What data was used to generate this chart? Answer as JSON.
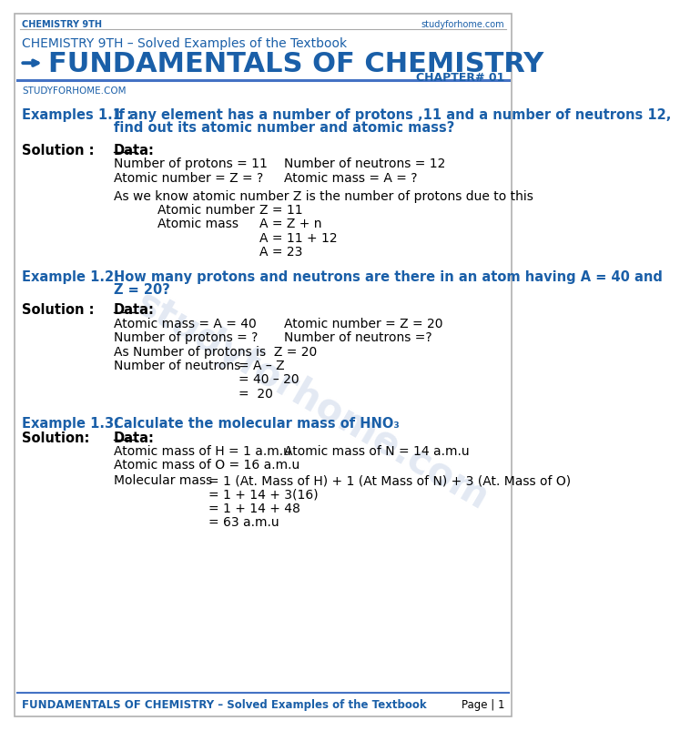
{
  "page_bg": "#ffffff",
  "border_color": "#cccccc",
  "blue_dark": "#1a5fa8",
  "blue_medium": "#2e75b6",
  "blue_light": "#4472c4",
  "text_black": "#000000",
  "text_gray": "#333333",
  "watermark_color": "#d0d8e8",
  "header_top_text_left": "CHEMISTRY 9TH",
  "header_top_text_right": "studyforhome.com",
  "subtitle_line": "CHEMISTRY 9TH – Solved Examples of the Textbook",
  "main_title": "FUNDAMENTALS OF CHEMISTRY",
  "chapter_label": "CHAPTER# 01",
  "studyforhome_label": "STUDYFORHOME.COM",
  "footer_left": "FUNDAMENTALS OF CHEMISTRY – Solved Examples of the Textbook",
  "footer_right": "Page | 1",
  "ex1_label": "Examples 1.1 :",
  "ex1_q1": "If any element has a number of protons ,11 and a number of neutrons 12,",
  "ex1_q2": "find out its atomic number and atomic mass?",
  "ex1_sol_label": "Solution :",
  "ex1_data_label": "Data:",
  "ex1_line1_a": "Number of protons = 11",
  "ex1_line1_b": "Number of neutrons = 12",
  "ex1_line2_a": "Atomic number = Z = ?",
  "ex1_line2_b": "Atomic mass = A = ?",
  "ex1_para": "As we know atomic number Z is the number of protons due to this",
  "ex1_an_label": "Atomic number",
  "ex1_an_val": "Z = 11",
  "ex1_am_label": "Atomic mass",
  "ex1_am_val1": "A = Z + n",
  "ex1_am_val2": "A = 11 + 12",
  "ex1_am_val3": "A = 23",
  "ex2_label": "Example 1.2:",
  "ex2_q1": "How many protons and neutrons are there in an atom having A = 40 and",
  "ex2_q2": "Z = 20?",
  "ex2_sol_label": "Solution :",
  "ex2_data_label": "Data:",
  "ex2_line1_a": "Atomic mass = A = 40",
  "ex2_line1_b": "Atomic number = Z = 20",
  "ex2_line2_a": "Number of protons = ?",
  "ex2_line2_b": "Number of neutrons =?",
  "ex2_para1": "As Number of protons is  Z = 20",
  "ex2_neutrons_label": "Number of neutrons",
  "ex2_neutrons_val1": "= A – Z",
  "ex2_neutrons_val2": "= 40 – 20",
  "ex2_neutrons_val3": "=  20",
  "ex3_label": "Example 1.3:",
  "ex3_q": "Calculate the molecular mass of HNO₃",
  "ex3_sol_label": "Solution:",
  "ex3_data_label": "Data:",
  "ex3_line1_a": "Atomic mass of H = 1 a.m.u",
  "ex3_line1_b": "Atomic mass of N = 14 a.m.u",
  "ex3_line2_a": "Atomic mass of O = 16 a.m.u",
  "ex3_mol_label": "Molecular mass",
  "ex3_mol_val1": "= 1 (At. Mass of H) + 1 (At Mass of N) + 3 (At. Mass of O)",
  "ex3_mol_val2": "= 1 + 14 + 3(16)",
  "ex3_mol_val3": "= 1 + 14 + 48",
  "ex3_mol_val4": "= 63 a.m.u"
}
